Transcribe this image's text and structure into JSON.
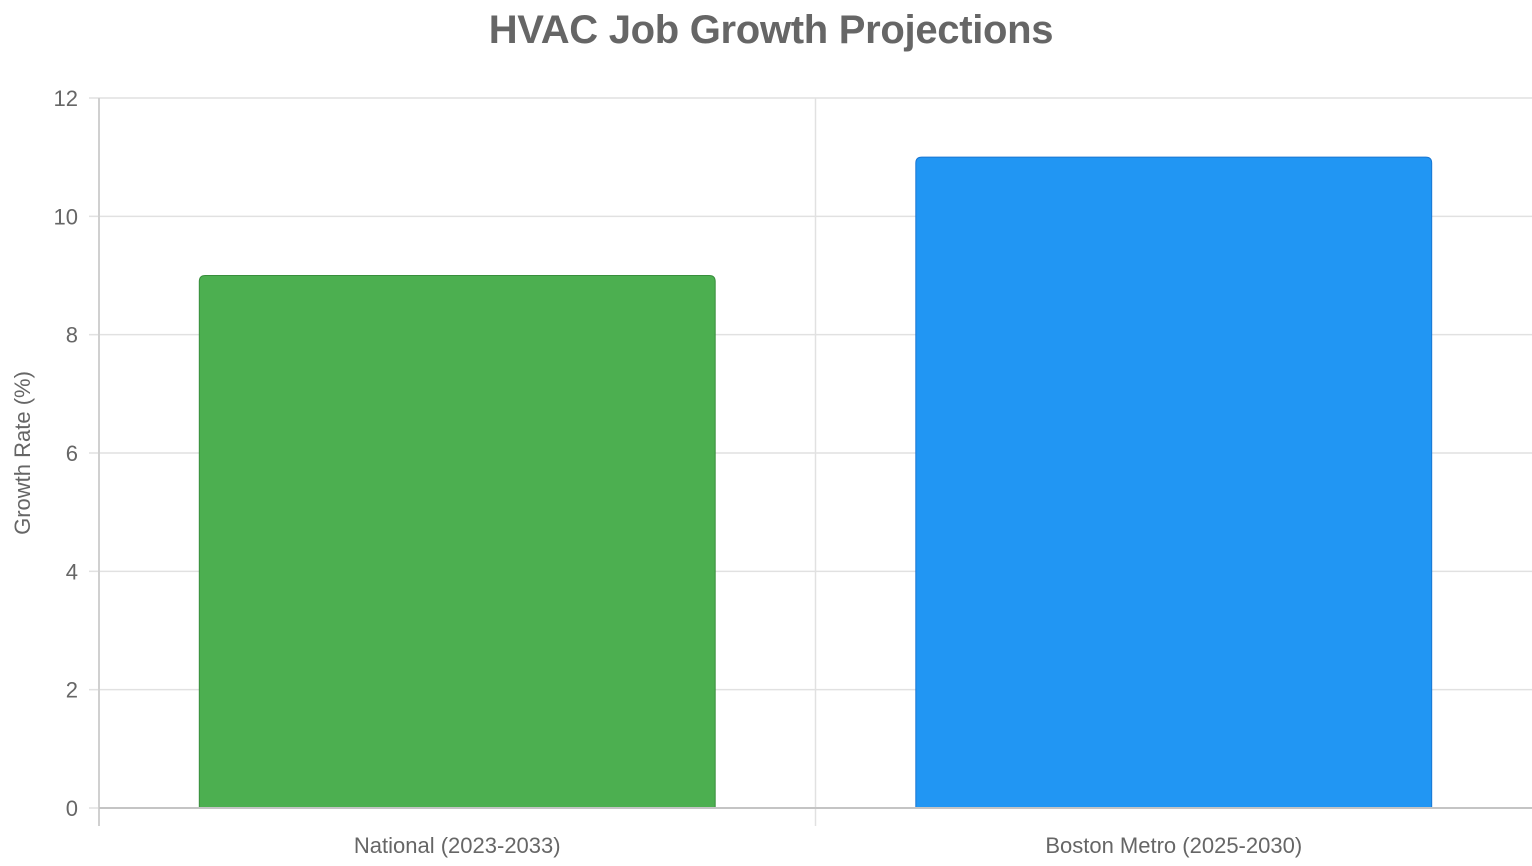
{
  "chart_data": {
    "type": "bar",
    "title": "HVAC Job Growth Projections",
    "xlabel": "",
    "ylabel": "Growth Rate (%)",
    "ylim": [
      0,
      12
    ],
    "y_ticks": [
      0,
      2,
      4,
      6,
      8,
      10,
      12
    ],
    "categories": [
      "National (2023-2033)",
      "Boston Metro (2025-2030)"
    ],
    "values": [
      9,
      11
    ],
    "colors": [
      "#4CAF50",
      "#2196F3"
    ],
    "border_colors": [
      "#388E3C",
      "#1976D2"
    ],
    "grid": true,
    "legend": "none"
  }
}
